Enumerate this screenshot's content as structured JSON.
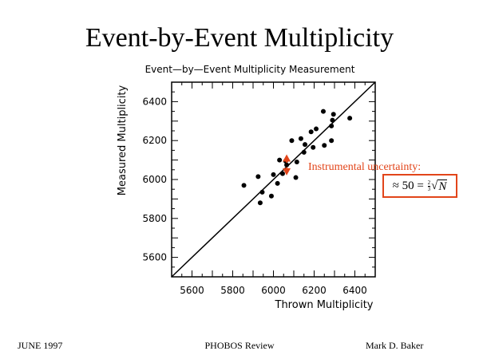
{
  "slide": {
    "title": "Event-by-Event Multiplicity"
  },
  "footer": {
    "left": "JUNE 1997",
    "center": "PHOBOS Review",
    "right": "Mark D. Baker"
  },
  "annotation": {
    "label": "Instrumental uncertainty:",
    "formula_prefix": "≈ 50 =",
    "frac_num": "2",
    "frac_den": "3",
    "radical": "√",
    "radicand": "N",
    "color": "#e2451a"
  },
  "colors": {
    "accent": "#e2451a",
    "points": "#000000"
  },
  "chart_data": {
    "type": "scatter",
    "title": "Event—by—Event Multiplicity Measurement",
    "xlabel": "Thrown Multiplicity",
    "ylabel": "Measured Multiplicity",
    "xlim": [
      5500,
      6500
    ],
    "ylim": [
      5500,
      6500
    ],
    "x_ticks": [
      5600,
      5800,
      6000,
      6200,
      6400
    ],
    "y_ticks": [
      5600,
      5800,
      6000,
      6200,
      6400
    ],
    "grid": false,
    "reference_line": "y = x",
    "points": [
      {
        "x": 5855,
        "y": 5970
      },
      {
        "x": 5925,
        "y": 6015
      },
      {
        "x": 5935,
        "y": 5880
      },
      {
        "x": 5945,
        "y": 5935
      },
      {
        "x": 5990,
        "y": 5915
      },
      {
        "x": 6000,
        "y": 6025
      },
      {
        "x": 6020,
        "y": 5980
      },
      {
        "x": 6030,
        "y": 6100
      },
      {
        "x": 6045,
        "y": 6030
      },
      {
        "x": 6060,
        "y": 6095
      },
      {
        "x": 6090,
        "y": 6200
      },
      {
        "x": 6110,
        "y": 6010
      },
      {
        "x": 6115,
        "y": 6090
      },
      {
        "x": 6135,
        "y": 6210
      },
      {
        "x": 6150,
        "y": 6140
      },
      {
        "x": 6155,
        "y": 6180
      },
      {
        "x": 6185,
        "y": 6245
      },
      {
        "x": 6195,
        "y": 6165
      },
      {
        "x": 6210,
        "y": 6260
      },
      {
        "x": 6245,
        "y": 6350
      },
      {
        "x": 6250,
        "y": 6175
      },
      {
        "x": 6285,
        "y": 6200
      },
      {
        "x": 6285,
        "y": 6275
      },
      {
        "x": 6290,
        "y": 6305
      },
      {
        "x": 6295,
        "y": 6335
      },
      {
        "x": 6375,
        "y": 6315
      }
    ],
    "highlight_error_bar": {
      "x": 6065,
      "y": 6075,
      "half_width": 50
    }
  }
}
